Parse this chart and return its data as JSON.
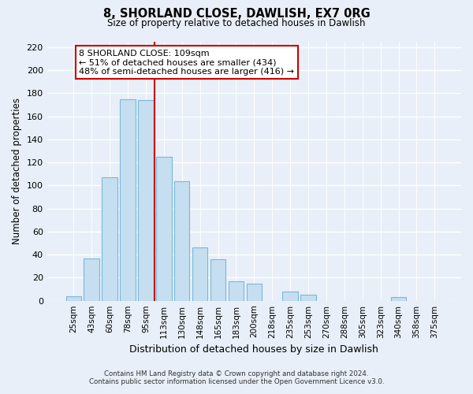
{
  "title": "8, SHORLAND CLOSE, DAWLISH, EX7 0RG",
  "subtitle": "Size of property relative to detached houses in Dawlish",
  "xlabel": "Distribution of detached houses by size in Dawlish",
  "ylabel": "Number of detached properties",
  "bar_color": "#c5dff0",
  "bar_edge_color": "#7ab8d8",
  "background_color": "#e8eff8",
  "grid_color": "#ffffff",
  "categories": [
    "25sqm",
    "43sqm",
    "60sqm",
    "78sqm",
    "95sqm",
    "113sqm",
    "130sqm",
    "148sqm",
    "165sqm",
    "183sqm",
    "200sqm",
    "218sqm",
    "235sqm",
    "253sqm",
    "270sqm",
    "288sqm",
    "305sqm",
    "323sqm",
    "340sqm",
    "358sqm",
    "375sqm"
  ],
  "values": [
    4,
    37,
    107,
    175,
    174,
    125,
    104,
    46,
    36,
    17,
    15,
    0,
    8,
    5,
    0,
    0,
    0,
    0,
    3,
    0,
    0
  ],
  "vline_pos": 4.5,
  "marker_label": "8 SHORLAND CLOSE: 109sqm",
  "annotation_line1": "← 51% of detached houses are smaller (434)",
  "annotation_line2": "48% of semi-detached houses are larger (416) →",
  "vline_color": "#cc0000",
  "annotation_box_edge": "#cc0000",
  "ylim": [
    0,
    225
  ],
  "yticks": [
    0,
    20,
    40,
    60,
    80,
    100,
    120,
    140,
    160,
    180,
    200,
    220
  ],
  "footer1": "Contains HM Land Registry data © Crown copyright and database right 2024.",
  "footer2": "Contains public sector information licensed under the Open Government Licence v3.0."
}
